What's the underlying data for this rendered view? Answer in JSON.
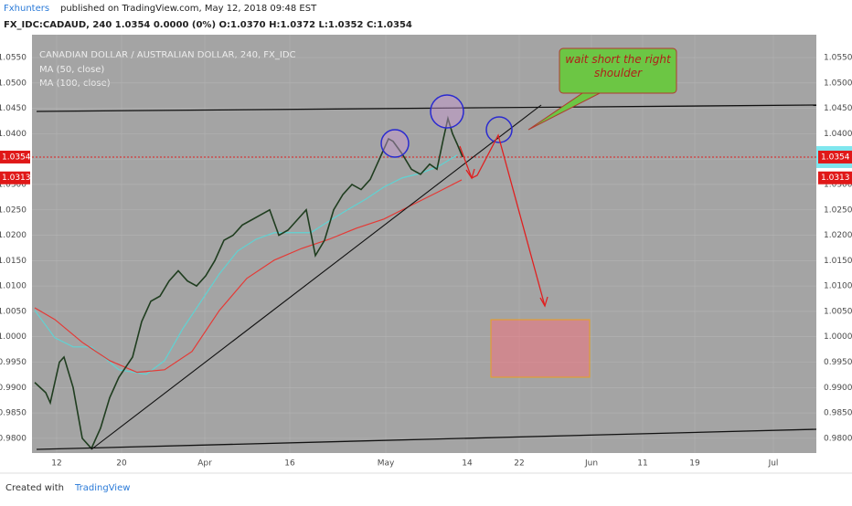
{
  "chart_data": {
    "type": "line",
    "publisher": "Fxhunters",
    "published": "published on TradingView.com, May 12, 2018 09:48 EST",
    "ticker_line": "FX_IDC:CADAUD, 240  1.0354  0.0000 (0%)  O:1.0370  H:1.0372  L:1.0352  C:1.0354",
    "title": "CANADIAN DOLLAR / AUSTRALIAN DOLLAR, 240, FX_IDC",
    "price": {
      "color": "#1f3d1f",
      "x": [
        0.3,
        1.5,
        2,
        3,
        3.5,
        4.5,
        5.5,
        6.5,
        7.5,
        8.5,
        9.5,
        11,
        12,
        13,
        14,
        15,
        16,
        17,
        18,
        19,
        20,
        21,
        22,
        23,
        24,
        25,
        26,
        27,
        28,
        29,
        30,
        31,
        32,
        33,
        34,
        35,
        36,
        37,
        38,
        39,
        39.5,
        40.5,
        41.5,
        42.5,
        43.5,
        44.3,
        45,
        45.5,
        46,
        46.5,
        47.1
      ],
      "values": [
        0.991,
        0.989,
        0.987,
        0.995,
        0.996,
        0.99,
        0.98,
        0.978,
        0.982,
        0.988,
        0.992,
        0.996,
        1.003,
        1.007,
        1.008,
        1.011,
        1.013,
        1.011,
        1.01,
        1.012,
        1.015,
        1.019,
        1.02,
        1.022,
        1.023,
        1.024,
        1.025,
        1.02,
        1.021,
        1.023,
        1.025,
        1.016,
        1.019,
        1.025,
        1.028,
        1.03,
        1.029,
        1.031,
        1.035,
        1.039,
        1.0385,
        1.036,
        1.033,
        1.032,
        1.034,
        1.033,
        1.039,
        1.043,
        1.04,
        1.038,
        1.0354
      ]
    },
    "series": [
      {
        "name": "MA (50, close)",
        "color": "#5fd3d3",
        "x": [
          0.3,
          2.5,
          4.5,
          6.5,
          9.5,
          12.5,
          14.5,
          16.5,
          18.5,
          20.5,
          22.5,
          24.5,
          26.5,
          28.5,
          30.5,
          32.5,
          34.5,
          36.5,
          38.5,
          40.5,
          42.5,
          44.5,
          46.5
        ],
        "values": [
          1.0052,
          0.9998,
          0.998,
          0.998,
          0.9935,
          0.9926,
          0.9953,
          1.0016,
          1.007,
          1.0124,
          1.0169,
          1.0192,
          1.0205,
          1.0205,
          1.0205,
          1.0228,
          1.025,
          1.0271,
          1.0295,
          1.0313,
          1.0322,
          1.0336,
          1.0358
        ]
      },
      {
        "name": "MA (100, close)",
        "color": "#e53935",
        "x": [
          0.3,
          2.5,
          5.5,
          8.5,
          11.5,
          14.5,
          17.5,
          20.5,
          23.5,
          26.5,
          29.5,
          32.5,
          35.5,
          38.5,
          41.5,
          44.5,
          47
        ],
        "values": [
          1.0057,
          1.0034,
          0.9989,
          0.9953,
          0.993,
          0.9935,
          0.9971,
          1.0052,
          1.0115,
          1.0151,
          1.0174,
          1.0192,
          1.0214,
          1.0232,
          1.0259,
          1.0286,
          1.0309
        ]
      }
    ],
    "xlim": [
      0,
      85.8
    ],
    "xticks": [
      {
        "value": 2.7,
        "label": "12"
      },
      {
        "value": 9.8,
        "label": "20"
      },
      {
        "value": 18.9,
        "label": "Apr"
      },
      {
        "value": 28.2,
        "label": "16"
      },
      {
        "value": 38.7,
        "label": "May"
      },
      {
        "value": 47.6,
        "label": "14"
      },
      {
        "value": 53.3,
        "label": "22"
      },
      {
        "value": 61.2,
        "label": "Jun"
      },
      {
        "value": 66.8,
        "label": "11"
      },
      {
        "value": 72.5,
        "label": "19"
      },
      {
        "value": 81.1,
        "label": "Jul"
      }
    ],
    "ylim": [
      0.9771,
      1.0595
    ],
    "yticks": [
      {
        "value": 0.98,
        "label": "0.9800"
      },
      {
        "value": 0.985,
        "label": "0.9850"
      },
      {
        "value": 0.99,
        "label": "0.9900"
      },
      {
        "value": 0.995,
        "label": "0.9950"
      },
      {
        "value": 1,
        "label": "1.0000"
      },
      {
        "value": 1.005,
        "label": "1.0050"
      },
      {
        "value": 1.01,
        "label": "1.0100"
      },
      {
        "value": 1.015,
        "label": "1.0150"
      },
      {
        "value": 1.02,
        "label": "1.0200"
      },
      {
        "value": 1.025,
        "label": "1.0250"
      },
      {
        "value": 1.03,
        "label": "1.0300"
      },
      {
        "value": 1.035,
        "label": "1.0350"
      },
      {
        "value": 1.04,
        "label": "1.0400"
      },
      {
        "value": 1.045,
        "label": "1.0450"
      },
      {
        "value": 1.05,
        "label": "1.0500"
      },
      {
        "value": 1.055,
        "label": "1.0550"
      }
    ],
    "last_prices": [
      {
        "value": 1.0354,
        "label": "1.0354"
      },
      {
        "value": 1.0313,
        "label": "1.0313"
      }
    ],
    "annotation": "wait short the right shoulder",
    "footer": "Created with",
    "brand": "TradingView"
  }
}
